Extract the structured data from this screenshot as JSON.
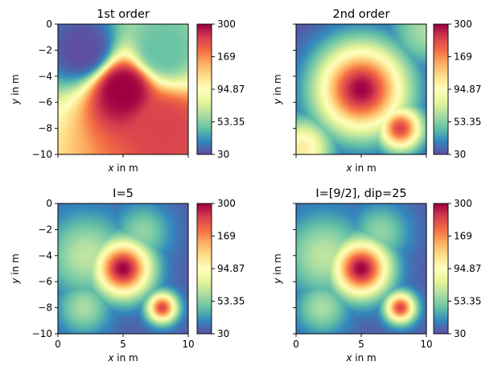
{
  "figure": {
    "colormap": "Spectral_r",
    "colormap_stops": [
      "#5e4fa2",
      "#3288bd",
      "#66c2a5",
      "#abdda4",
      "#e6f598",
      "#ffffbf",
      "#fee08b",
      "#fdae61",
      "#f46d43",
      "#d53e4f",
      "#9e0142"
    ]
  },
  "chart_data": [
    {
      "type": "heatmap",
      "title": "1st order",
      "xlabel_var": "x",
      "xlabel_unit": " in m",
      "ylabel_var": "y",
      "ylabel_unit": " in m",
      "xlim": [
        0,
        10
      ],
      "ylim": [
        -10,
        0
      ],
      "xticks": [
        0,
        5,
        10
      ],
      "xticklabels_visible": false,
      "yticks": [
        0,
        -2,
        -4,
        -6,
        -8,
        -10
      ],
      "yticklabels": [
        "0",
        "−2",
        "−4",
        "−6",
        "−8",
        "−10"
      ],
      "yticklabels_visible": true,
      "colorbar": {
        "scale": "log",
        "range": [
          30,
          300
        ],
        "ticks": [
          "30",
          "53.35",
          "94.87",
          "169",
          "300"
        ]
      },
      "field": {
        "kind": "inverse_distance",
        "background": 110,
        "gradient": "bottom-right warmer",
        "sources": [
          {
            "x": 2,
            "y": -2,
            "value": 30
          },
          {
            "x": 8,
            "y": -2,
            "value": 48
          },
          {
            "x": 5,
            "y": -5,
            "value": 300
          },
          {
            "x": 8,
            "y": -8,
            "value": 230
          }
        ]
      }
    },
    {
      "type": "heatmap",
      "title": "2nd order",
      "xlabel_var": "x",
      "xlabel_unit": " in m",
      "ylabel_var": "y",
      "ylabel_unit": " in m",
      "xlim": [
        0,
        10
      ],
      "ylim": [
        -10,
        0
      ],
      "xticks": [
        0,
        5,
        10
      ],
      "xticklabels_visible": false,
      "yticks": [
        0,
        -2,
        -4,
        -6,
        -8,
        -10
      ],
      "yticklabels_visible": false,
      "colorbar": {
        "scale": "log",
        "range": [
          30,
          300
        ],
        "ticks": [
          "30",
          "53.35",
          "94.87",
          "169",
          "300"
        ]
      },
      "field": {
        "kind": "smooth_blobs",
        "background": 30,
        "blobs": [
          {
            "x": 5,
            "y": -5,
            "value": 300,
            "width": 2.4
          },
          {
            "x": 8,
            "y": -8,
            "value": 230,
            "width": 1.2
          },
          {
            "x": 0.5,
            "y": -9.5,
            "value": 110,
            "width": 1.6
          },
          {
            "x": 10,
            "y": -0.5,
            "value": 60,
            "width": 2.0
          }
        ]
      }
    },
    {
      "type": "heatmap",
      "title": "I=5",
      "xlabel_var": "x",
      "xlabel_unit": " in m",
      "ylabel_var": "y",
      "ylabel_unit": " in m",
      "xlim": [
        0,
        10
      ],
      "ylim": [
        -10,
        0
      ],
      "xticks": [
        0,
        5,
        10
      ],
      "xticklabels": [
        "0",
        "5",
        "10"
      ],
      "xticklabels_visible": true,
      "yticks": [
        0,
        -2,
        -4,
        -6,
        -8,
        -10
      ],
      "yticklabels": [
        "0",
        "−2",
        "−4",
        "−6",
        "−8",
        "−10"
      ],
      "yticklabels_visible": true,
      "colorbar": {
        "scale": "log",
        "range": [
          30,
          300
        ],
        "ticks": [
          "30",
          "53.35",
          "94.87",
          "169",
          "300"
        ]
      },
      "field": {
        "kind": "smooth_blobs",
        "background": 32,
        "blobs": [
          {
            "x": 5,
            "y": -5,
            "value": 300,
            "width": 1.5
          },
          {
            "x": 8,
            "y": -8,
            "value": 230,
            "width": 0.8
          },
          {
            "x": 2.2,
            "y": -4,
            "value": 65,
            "width": 2.2
          },
          {
            "x": 6.5,
            "y": -2.2,
            "value": 55,
            "width": 1.5
          },
          {
            "x": 2,
            "y": -8,
            "value": 60,
            "width": 1.4
          }
        ]
      }
    },
    {
      "type": "heatmap",
      "title": "I=[9/2], dip=25",
      "xlabel_var": "x",
      "xlabel_unit": " in m",
      "ylabel_var": "y",
      "ylabel_unit": " in m",
      "xlim": [
        0,
        10
      ],
      "ylim": [
        -10,
        0
      ],
      "xticks": [
        0,
        5,
        10
      ],
      "xticklabels": [
        "0",
        "5",
        "10"
      ],
      "xticklabels_visible": true,
      "yticks": [
        0,
        -2,
        -4,
        -6,
        -8,
        -10
      ],
      "yticklabels_visible": false,
      "colorbar": {
        "scale": "log",
        "range": [
          30,
          300
        ],
        "ticks": [
          "30",
          "53.35",
          "94.87",
          "169",
          "300"
        ]
      },
      "field": {
        "kind": "smooth_blobs",
        "background": 32,
        "blobs": [
          {
            "x": 5,
            "y": -5,
            "value": 300,
            "width": 1.5
          },
          {
            "x": 8,
            "y": -8,
            "value": 230,
            "width": 0.8
          },
          {
            "x": 2.2,
            "y": -4,
            "value": 65,
            "width": 2.2
          },
          {
            "x": 6.5,
            "y": -2.2,
            "value": 55,
            "width": 1.5
          },
          {
            "x": 2,
            "y": -8,
            "value": 60,
            "width": 1.4
          }
        ]
      }
    }
  ]
}
